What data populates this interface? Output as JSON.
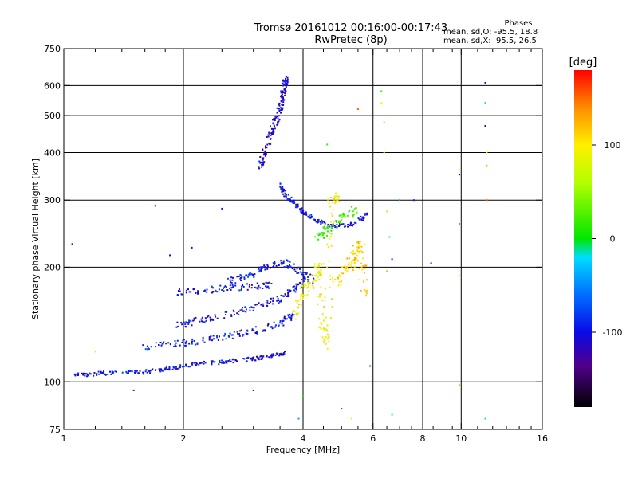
{
  "title": {
    "line1": "Tromsø 20161012 00:16:00-00:17:43",
    "line2": "RwPretec (8p)"
  },
  "phases": {
    "title": "Phases",
    "line1": "mean, sd,O: -95.5, 18.8",
    "line2": "mean, sd,X:  95.5, 26.5"
  },
  "colorbar": {
    "unit": "[deg]",
    "ticks": [
      "100",
      "0",
      "-100"
    ],
    "tick_values": [
      100,
      0,
      -100
    ],
    "range": [
      -180,
      180
    ]
  },
  "chart_data": {
    "type": "scatter",
    "xlabel": "Frequency [MHz]",
    "ylabel": "Stationary phase Virtual Height [km]",
    "xscale": "log",
    "yscale": "log",
    "xlim": [
      1,
      16
    ],
    "ylim": [
      75,
      750
    ],
    "x_ticks": [
      1,
      2,
      4,
      6,
      8,
      10,
      16
    ],
    "x_tick_labels": [
      "1",
      "2",
      "4",
      "6",
      "8",
      "10",
      "16"
    ],
    "x_minor_ticks": [
      1.2,
      1.4,
      1.6,
      1.8,
      2.5,
      3,
      3.5,
      4.5,
      5,
      5.5,
      6.5,
      7,
      7.5,
      8.5,
      9,
      9.5,
      11,
      12,
      13,
      14,
      15
    ],
    "y_ticks": [
      75,
      100,
      200,
      300,
      400,
      500,
      600,
      750
    ],
    "y_tick_labels": [
      "75",
      "100",
      "200",
      "300",
      "400",
      "500",
      "600",
      "750"
    ],
    "grid_x": [
      2,
      4,
      6,
      8,
      10
    ],
    "grid_y": [
      100,
      200,
      300,
      400,
      500,
      600
    ],
    "traces": [
      {
        "phase": -100,
        "spread": 0.018,
        "points": [
          [
            1.05,
            104
          ],
          [
            1.2,
            105
          ],
          [
            1.4,
            106
          ],
          [
            1.6,
            106
          ],
          [
            1.8,
            108
          ],
          [
            2.0,
            110
          ],
          [
            2.3,
            112
          ],
          [
            2.6,
            113
          ],
          [
            3.0,
            115
          ],
          [
            3.3,
            117
          ],
          [
            3.6,
            119
          ]
        ]
      },
      {
        "phase": -95,
        "spread": 0.03,
        "points": [
          [
            1.6,
            123
          ],
          [
            1.9,
            126
          ],
          [
            2.2,
            128
          ],
          [
            2.6,
            132
          ],
          [
            3.0,
            136
          ],
          [
            3.5,
            142
          ],
          [
            3.8,
            150
          ]
        ]
      },
      {
        "phase": -100,
        "spread": 0.03,
        "points": [
          [
            1.9,
            140
          ],
          [
            2.2,
            145
          ],
          [
            2.6,
            150
          ],
          [
            3.0,
            157
          ],
          [
            3.5,
            165
          ],
          [
            3.8,
            175
          ],
          [
            4.0,
            185
          ]
        ]
      },
      {
        "phase": -100,
        "spread": 0.03,
        "points": [
          [
            1.9,
            172
          ],
          [
            2.2,
            174
          ],
          [
            2.6,
            176
          ],
          [
            3.0,
            178
          ],
          [
            3.3,
            180
          ]
        ]
      },
      {
        "phase": -95,
        "spread": 0.035,
        "points": [
          [
            2.6,
            182
          ],
          [
            2.9,
            190
          ],
          [
            3.2,
            198
          ],
          [
            3.6,
            205
          ],
          [
            3.9,
            195
          ],
          [
            4.2,
            185
          ]
        ]
      },
      {
        "phase": -110,
        "spread": 0.03,
        "points": [
          [
            3.1,
            360
          ],
          [
            3.2,
            400
          ],
          [
            3.3,
            440
          ],
          [
            3.4,
            480
          ],
          [
            3.5,
            520
          ],
          [
            3.55,
            560
          ],
          [
            3.6,
            600
          ],
          [
            3.62,
            630
          ]
        ]
      },
      {
        "phase": -100,
        "spread": 0.02,
        "points": [
          [
            3.5,
            330
          ],
          [
            3.6,
            310
          ],
          [
            3.8,
            295
          ],
          [
            4.0,
            280
          ],
          [
            4.3,
            265
          ],
          [
            4.7,
            258
          ],
          [
            5.3,
            258
          ],
          [
            5.8,
            275
          ]
        ]
      },
      {
        "phase": 95,
        "spread": 0.05,
        "points": [
          [
            3.8,
            150
          ],
          [
            4.0,
            170
          ],
          [
            4.2,
            185
          ],
          [
            4.4,
            200
          ],
          [
            4.5,
            140
          ],
          [
            4.6,
            125
          ],
          [
            4.7,
            290
          ],
          [
            4.9,
            310
          ]
        ]
      },
      {
        "phase": 110,
        "spread": 0.05,
        "points": [
          [
            4.8,
            180
          ],
          [
            5.2,
            200
          ],
          [
            5.4,
            215
          ],
          [
            5.6,
            230
          ],
          [
            5.7,
            170
          ]
        ]
      },
      {
        "phase": 20,
        "spread": 0.04,
        "points": [
          [
            4.3,
            240
          ],
          [
            4.6,
            250
          ],
          [
            5.0,
            270
          ],
          [
            5.5,
            285
          ]
        ]
      }
    ],
    "isolated_points": [
      [
        1.05,
        230,
        -95
      ],
      [
        1.2,
        120,
        80
      ],
      [
        1.5,
        95,
        -110
      ],
      [
        1.7,
        290,
        -100
      ],
      [
        1.85,
        215,
        -100
      ],
      [
        2.1,
        225,
        -105
      ],
      [
        2.5,
        285,
        -95
      ],
      [
        3.0,
        95,
        -100
      ],
      [
        4.0,
        92,
        5
      ],
      [
        4.6,
        420,
        20
      ],
      [
        5.5,
        520,
        150
      ],
      [
        5.9,
        110,
        -60
      ],
      [
        6.3,
        580,
        20
      ],
      [
        6.3,
        540,
        90
      ],
      [
        6.4,
        480,
        120
      ],
      [
        6.4,
        400,
        95
      ],
      [
        6.5,
        280,
        60
      ],
      [
        6.6,
        240,
        -20
      ],
      [
        6.7,
        210,
        -90
      ],
      [
        6.5,
        195,
        40
      ],
      [
        6.7,
        82,
        -20
      ],
      [
        7.0,
        300,
        -40
      ],
      [
        7.6,
        300,
        -90
      ],
      [
        8.4,
        205,
        -110
      ],
      [
        9.9,
        360,
        100
      ],
      [
        9.9,
        350,
        -110
      ],
      [
        9.9,
        260,
        150
      ],
      [
        9.9,
        190,
        90
      ],
      [
        9.9,
        98,
        130
      ],
      [
        11.5,
        610,
        -100
      ],
      [
        11.5,
        540,
        -20
      ],
      [
        11.5,
        470,
        -110
      ],
      [
        11.6,
        400,
        100
      ],
      [
        11.6,
        370,
        120
      ],
      [
        11.6,
        300,
        150
      ],
      [
        11.5,
        80,
        -20
      ],
      [
        5.3,
        80,
        100
      ],
      [
        5.0,
        85,
        -60
      ],
      [
        3.9,
        80,
        -40
      ]
    ]
  }
}
